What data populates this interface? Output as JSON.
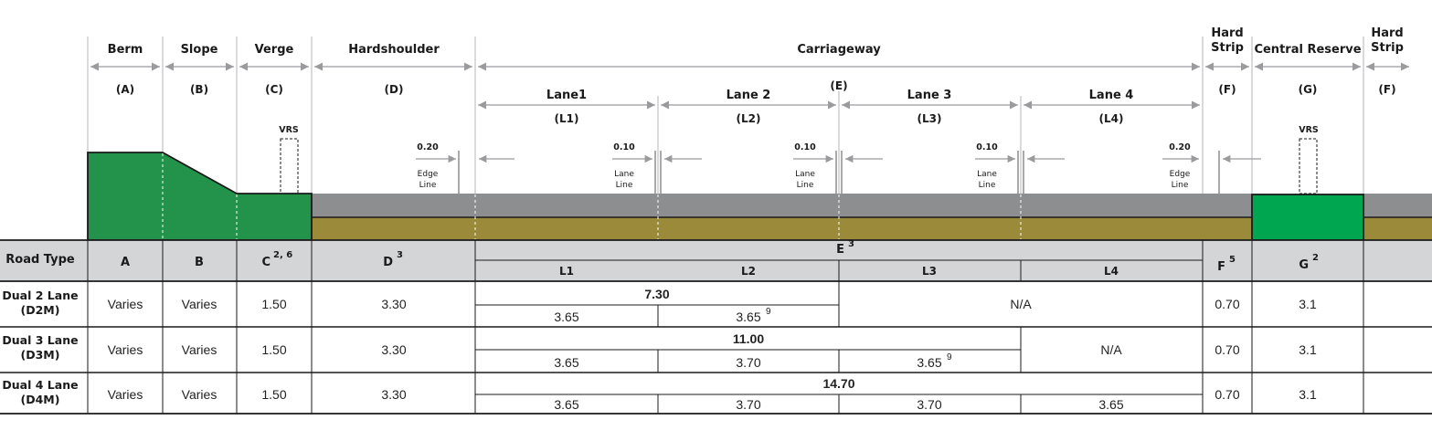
{
  "colors": {
    "green_dark": "#23924a",
    "green_bright": "#00a650",
    "asphalt": "#8d8e90",
    "subbase": "#9a8a3a",
    "header_bg": "#d4d5d7",
    "arrow": "#9a9b9d",
    "line": "#1a1a1a"
  },
  "top_labels": {
    "berm": "Berm",
    "slope": "Slope",
    "verge": "Verge",
    "hardshoulder": "Hardshoulder",
    "carriageway": "Carriageway",
    "hard_strip_left_1": "Hard",
    "hard_strip_left_2": "Strip",
    "central_reserve": "Central Reserve",
    "hard_strip_right_1": "Hard",
    "hard_strip_right_2": "Strip"
  },
  "codes": {
    "a": "(A)",
    "b": "(B)",
    "c": "(C)",
    "d": "(D)",
    "e": "(E)",
    "f_left": "(F)",
    "g": "(G)",
    "f_right": "(F)"
  },
  "lanes": {
    "lane1": "Lane1",
    "lane2": "Lane 2",
    "lane3": "Lane 3",
    "lane4": "Lane 4",
    "l1": "(L1)",
    "l2": "(L2)",
    "l3": "(L3)",
    "l4": "(L4)"
  },
  "markings": {
    "vrs": "VRS",
    "edge_left_width": "0.20",
    "edge_right_width": "0.20",
    "lane_width_1": "0.10",
    "lane_width_2": "0.10",
    "lane_width_3": "0.10",
    "edge_1": "Edge",
    "line_word": "Line",
    "lane_word": "Lane"
  },
  "table": {
    "road_type": "Road Type",
    "col_a": "A",
    "col_b": "B",
    "col_c": "C",
    "col_c_sup": "2, 6",
    "col_d": "D",
    "col_d_sup": "3",
    "col_e": "E",
    "col_e_sup": "3",
    "col_f": "F",
    "col_f_sup": "5",
    "col_g": "G",
    "col_g_sup": "2",
    "sub_l1": "L1",
    "sub_l2": "L2",
    "sub_l3": "L3",
    "sub_l4": "L4",
    "rows": [
      {
        "name1": "Dual 2 Lane",
        "name2": "(D2M)",
        "a": "Varies",
        "b": "Varies",
        "c": "1.50",
        "d": "3.30",
        "total": "7.30",
        "l1": "3.65",
        "l2": "3.65",
        "l2_sup": "9",
        "na": "N/A",
        "f": "0.70",
        "g": "3.1"
      },
      {
        "name1": "Dual 3 Lane",
        "name2": "(D3M)",
        "a": "Varies",
        "b": "Varies",
        "c": "1.50",
        "d": "3.30",
        "total": "11.00",
        "l1": "3.65",
        "l2": "3.70",
        "l3": "3.65",
        "l3_sup": "9",
        "na": "N/A",
        "f": "0.70",
        "g": "3.1"
      },
      {
        "name1": "Dual 4 Lane",
        "name2": "(D4M)",
        "a": "Varies",
        "b": "Varies",
        "c": "1.50",
        "d": "3.30",
        "total": "14.70",
        "l1": "3.65",
        "l2": "3.70",
        "l3": "3.70",
        "l4": "3.65",
        "f": "0.70",
        "g": "3.1"
      }
    ]
  }
}
